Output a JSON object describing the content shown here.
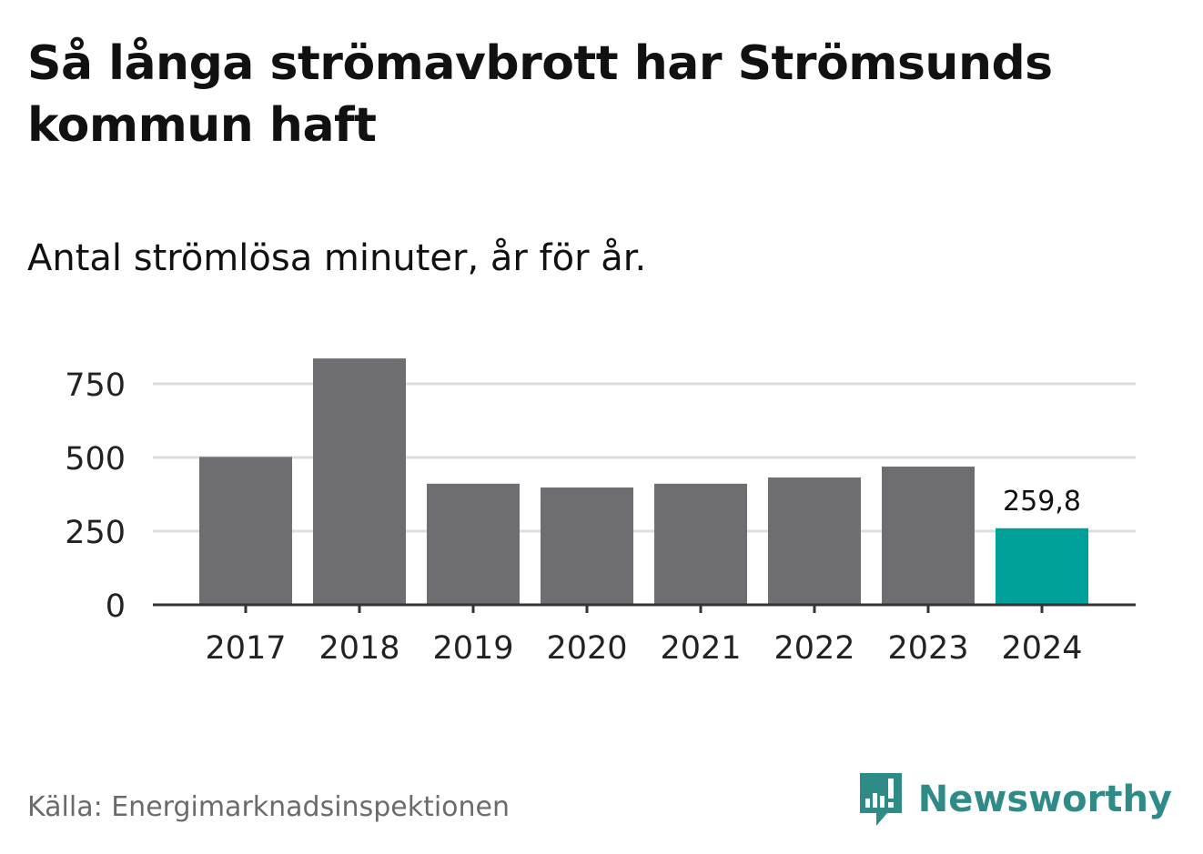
{
  "title": "Så långa strömavbrott har Strömsunds kommun haft",
  "subtitle": "Antal strömlösa minuter, år för år.",
  "source": "Källa: Energimarknadsinspektionen",
  "brand": {
    "name": "Newsworthy",
    "icon": "newsworthy-logo-icon",
    "color": "#2f8b87"
  },
  "colors": {
    "bar": "#6e6d72",
    "highlight": "#00a19a",
    "grid": "#dddddd",
    "axis": "#333333"
  },
  "chart_data": {
    "type": "bar",
    "title": "Så långa strömavbrott har Strömsunds kommun haft",
    "subtitle": "Antal strömlösa minuter, år för år.",
    "xlabel": "",
    "ylabel": "",
    "categories": [
      "2017",
      "2018",
      "2019",
      "2020",
      "2021",
      "2022",
      "2023",
      "2024"
    ],
    "values": [
      502,
      836,
      411,
      398,
      411,
      432,
      469,
      259.8
    ],
    "highlight_index": 7,
    "data_labels": [
      {
        "index": 7,
        "text": "259,8"
      }
    ],
    "yticks": [
      0,
      250,
      500,
      750
    ],
    "ytick_labels": [
      "0",
      "250",
      "500",
      "750"
    ],
    "ylim": [
      0,
      860
    ],
    "grid": true,
    "legend": "none"
  }
}
